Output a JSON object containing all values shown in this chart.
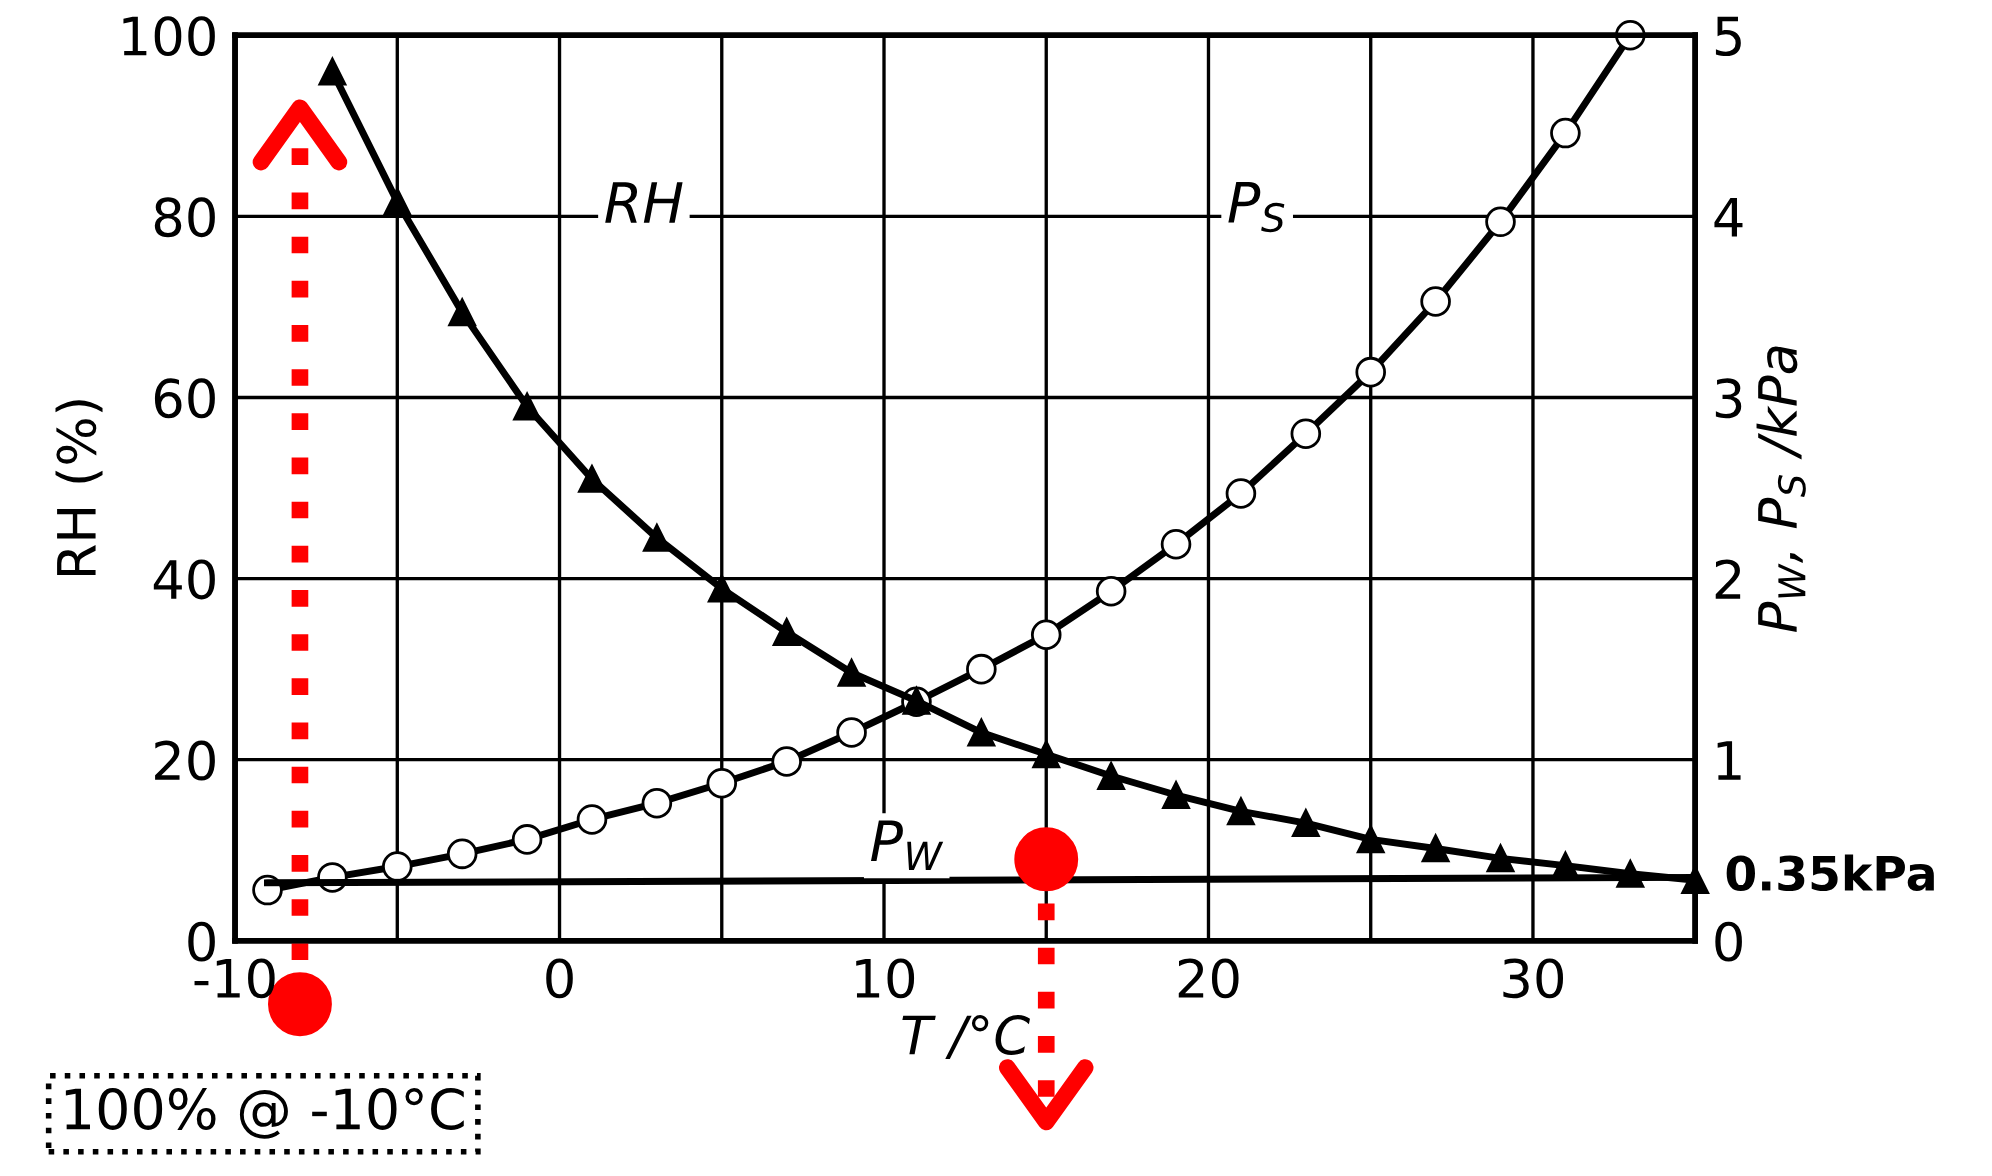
{
  "chart_data": {
    "type": "line",
    "xlabel": "T /°C",
    "ylabel": "RH (%)",
    "y2label": "P$_{W}$, P$_{S}$ /kPa",
    "xlim": [
      -10,
      35
    ],
    "xticks": [
      -10,
      {
        "value": -5,
        "label": null
      },
      0,
      {
        "value": 5,
        "label": null
      },
      10,
      {
        "value": 15,
        "label": null
      },
      20,
      {
        "value": 25,
        "label": null
      },
      30,
      {
        "value": 35,
        "label": null
      }
    ],
    "ylim": [
      0,
      100
    ],
    "yticks": [
      0,
      20,
      40,
      60,
      80,
      100
    ],
    "y2lim": [
      0,
      5
    ],
    "y2ticks": [
      0,
      1,
      2,
      3,
      4,
      5
    ],
    "grid": true,
    "legend": false,
    "series": [
      {
        "name": "RH",
        "color": "#000000",
        "marker": "triangle",
        "axis": "y",
        "x": [
          -7,
          -5,
          -3,
          -1,
          1,
          3,
          5,
          7,
          9,
          11,
          13,
          15,
          17,
          19,
          21,
          23,
          25,
          27,
          29,
          31,
          33,
          35
        ],
        "values": [
          96,
          81.6,
          69.4,
          59,
          51,
          44.5,
          38.9,
          34.1,
          29.6,
          26.5,
          23,
          20.6,
          18.2,
          16.1,
          14.3,
          13,
          11.2,
          10.2,
          9.1,
          8.3,
          7.4,
          6.7
        ]
      },
      {
        "name": "P$_{S}$",
        "color": "#000000",
        "marker": "circle",
        "axis": "y2",
        "x": [
          -9,
          -7,
          -5,
          -3,
          -1,
          1,
          3,
          5,
          7,
          9,
          11,
          13,
          15,
          17,
          19,
          21,
          23,
          25,
          27,
          29,
          31,
          33
        ],
        "values": [
          0.28,
          0.35,
          0.41,
          0.48,
          0.56,
          0.67,
          0.76,
          0.87,
          0.99,
          1.15,
          1.32,
          1.5,
          1.69,
          1.93,
          2.19,
          2.47,
          2.8,
          3.14,
          3.53,
          3.97,
          4.46,
          5.0
        ]
      },
      {
        "name": "P$_{W}$",
        "color": "#000000",
        "marker": "none",
        "axis": "y2",
        "x": [
          -9,
          35
        ],
        "values": [
          0.32,
          0.35
        ]
      }
    ],
    "ref_lines": [
      {
        "axis": "x",
        "value": -8,
        "color": "#ff0000",
        "line_style": "dotted"
      },
      {
        "axis": "x",
        "value": 15,
        "color": "#ff0000",
        "line_style": "dotted"
      }
    ],
    "annotations": [
      "0.35kPa",
      "100% @ -10°C"
    ]
  }
}
